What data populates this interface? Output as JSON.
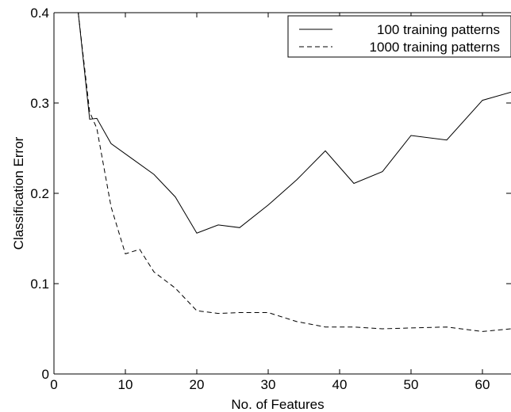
{
  "chart_data": {
    "type": "line",
    "title": "",
    "xlabel": "No. of Features",
    "ylabel": "Classification Error",
    "xlim": [
      0,
      64
    ],
    "ylim": [
      0,
      0.4
    ],
    "xticks": [
      0,
      10,
      20,
      30,
      40,
      50,
      60
    ],
    "yticks": [
      0,
      0.1,
      0.2,
      0.3,
      0.4
    ],
    "xtick_labels": [
      "0",
      "10",
      "20",
      "30",
      "40",
      "50",
      "60"
    ],
    "ytick_labels": [
      "0",
      "0.1",
      "0.2",
      "0.3",
      "0.4"
    ],
    "grid": false,
    "legend_position": "top-right",
    "series": [
      {
        "name": "100 training patterns",
        "style": "solid",
        "color": "#000000",
        "x": [
          3.4,
          5.0,
          6.0,
          8.0,
          11.0,
          14.0,
          17.0,
          20.0,
          23.0,
          26.0,
          30.0,
          34.0,
          38.0,
          42.0,
          46.0,
          50.0,
          55.0,
          60.0,
          64.0
        ],
        "y": [
          0.4,
          0.282,
          0.283,
          0.255,
          0.238,
          0.221,
          0.196,
          0.156,
          0.165,
          0.162,
          0.187,
          0.215,
          0.247,
          0.211,
          0.224,
          0.264,
          0.259,
          0.303,
          0.312
        ]
      },
      {
        "name": "1000 training patterns",
        "style": "dashed",
        "color": "#000000",
        "x": [
          3.4,
          5.0,
          6.0,
          8.0,
          10.0,
          12.0,
          14.0,
          17.0,
          20.0,
          23.0,
          26.0,
          30.0,
          34.0,
          38.0,
          42.0,
          46.0,
          50.0,
          55.0,
          60.0,
          64.0
        ],
        "y": [
          0.4,
          0.29,
          0.272,
          0.185,
          0.133,
          0.138,
          0.113,
          0.095,
          0.07,
          0.067,
          0.068,
          0.068,
          0.058,
          0.052,
          0.052,
          0.05,
          0.051,
          0.052,
          0.047,
          0.05
        ]
      }
    ]
  }
}
